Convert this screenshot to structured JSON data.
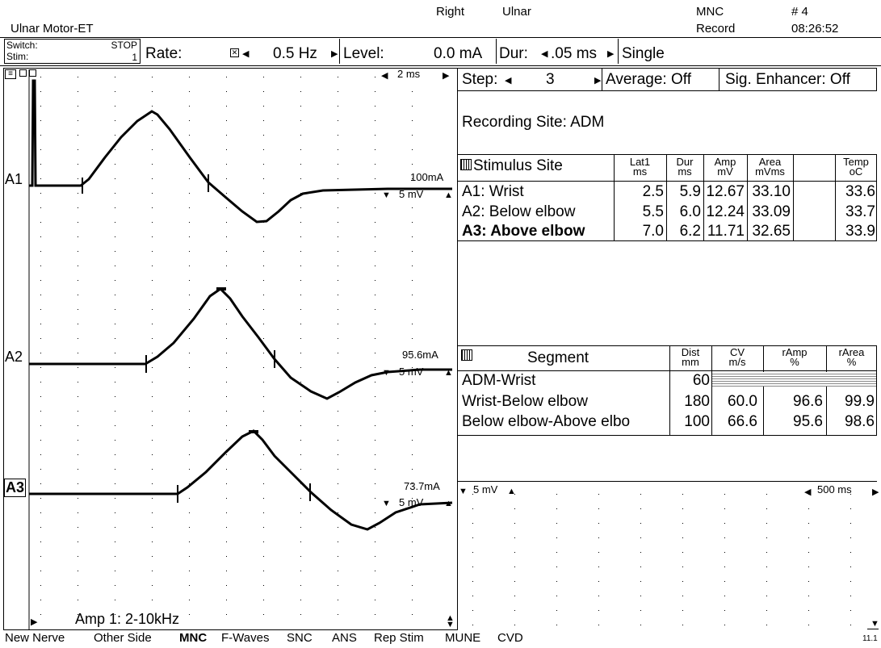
{
  "header": {
    "protocol": "Ulnar Motor-ET",
    "side": "Right",
    "nerve": "Ulnar",
    "test_type": "MNC",
    "mode": "Record",
    "trace_no": "# 4",
    "time": "08:26:52"
  },
  "stim_bar": {
    "switch_label": "Switch:",
    "switch_value": "STOP",
    "stim_label": "Stim:",
    "stim_value": "1",
    "rate_label": "Rate:",
    "rate_value": "0.5 Hz",
    "level_label": "Level:",
    "level_value": "0.0 mA",
    "dur_label": "Dur:",
    "dur_value": ".05 ms",
    "mode_value": "Single"
  },
  "waveform_panel": {
    "timebase": "2 ms",
    "filter_label": "Amp 1: 2-10kHz",
    "traces": [
      {
        "id": "A1",
        "stim_intensity": "100mA",
        "sensitivity": "5 mV"
      },
      {
        "id": "A2",
        "stim_intensity": "95.6mA",
        "sensitivity": "5 mV"
      },
      {
        "id": "A3",
        "stim_intensity": "73.7mA",
        "sensitivity": "5 mV"
      }
    ]
  },
  "right_panel": {
    "step_label": "Step:",
    "step_value": "3",
    "average_label": "Average: Off",
    "enhancer_label": "Sig. Enhancer: Off",
    "recording_site": "Recording Site: ADM"
  },
  "stimulus_table": {
    "title": "Stimulus Site",
    "columns": [
      {
        "label": "Lat1",
        "unit": "ms"
      },
      {
        "label": "Dur",
        "unit": "ms"
      },
      {
        "label": "Amp",
        "unit": "mV"
      },
      {
        "label": "Area",
        "unit": "mVms"
      },
      {
        "label": "Temp",
        "unit": "oC"
      }
    ],
    "rows": [
      {
        "site": "A1: Wrist",
        "values": [
          "2.5",
          "5.9",
          "12.67",
          "33.10",
          "33.6"
        ]
      },
      {
        "site": "A2: Below elbow",
        "values": [
          "5.5",
          "6.0",
          "12.24",
          "33.09",
          "33.7"
        ]
      },
      {
        "site": "A3: Above elbow",
        "values": [
          "7.0",
          "6.2",
          "11.71",
          "32.65",
          "33.9"
        ]
      }
    ]
  },
  "segment_table": {
    "title": "Segment",
    "columns": [
      {
        "label": "Dist",
        "unit": "mm"
      },
      {
        "label": "CV",
        "unit": "m/s"
      },
      {
        "label": "rAmp",
        "unit": "%"
      },
      {
        "label": "rArea",
        "unit": "%"
      }
    ],
    "rows": [
      {
        "segment": "ADM-Wrist",
        "values": [
          "60",
          "",
          "",
          ""
        ]
      },
      {
        "segment": "Wrist-Below elbow",
        "values": [
          "180",
          "60.0",
          "96.6",
          "99.9"
        ]
      },
      {
        "segment": "Below elbow-Above elbo",
        "values": [
          "100",
          "66.6",
          "95.6",
          "98.6"
        ]
      }
    ]
  },
  "secondary_panel": {
    "sensitivity": "5 mV",
    "timebase": "500 ms"
  },
  "footer": {
    "tabs": [
      "New Nerve",
      "Other Side",
      "MNC",
      "F-Waves",
      "SNC",
      "ANS",
      "Rep Stim",
      "MUNE",
      "CVD"
    ],
    "active_tab": "MNC",
    "version": "11.1"
  },
  "icons": [
    "menu-icon",
    "window-icon",
    "checkbox-icon",
    "arrow-left-icon",
    "arrow-right-icon",
    "arrow-up-icon",
    "arrow-down-icon",
    "grid-icon"
  ]
}
